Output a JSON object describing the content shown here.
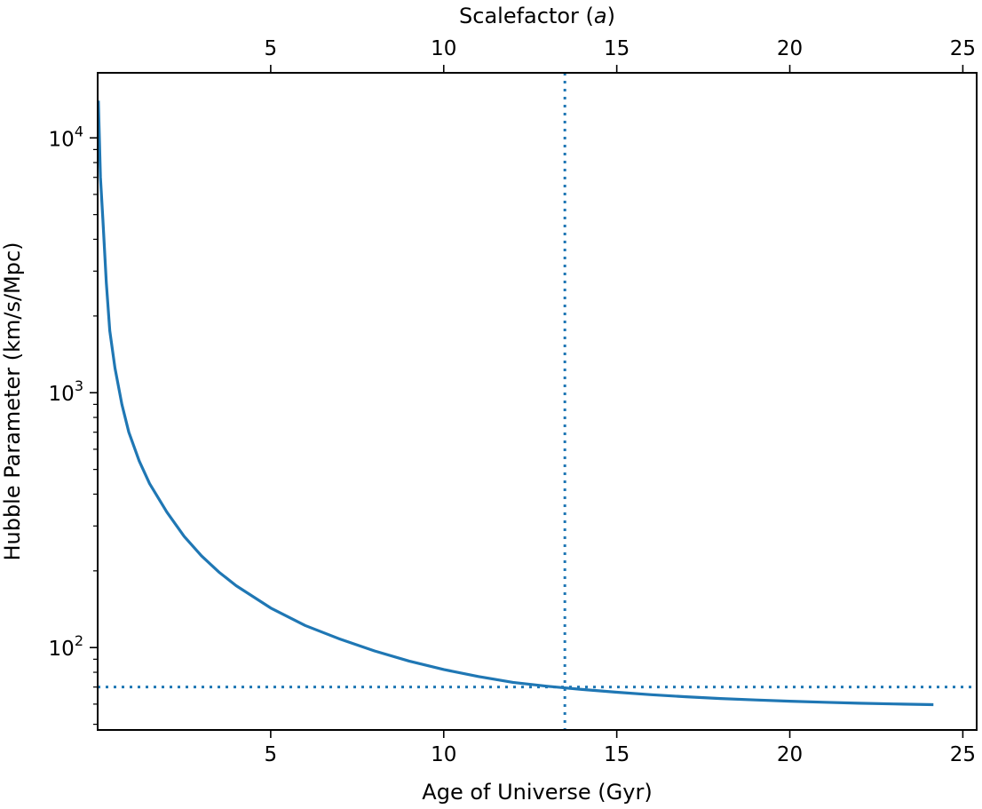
{
  "chart_data": {
    "type": "line",
    "xlabel": "Age of Universe (Gyr)",
    "ylabel": "Hubble Parameter (km/s/Mpc)",
    "top_xlabel_prefix": "Scalefactor (",
    "top_xlabel_var": "a",
    "top_xlabel_suffix": ")",
    "xlim": [
      0.0,
      25.4
    ],
    "ylim": [
      47.5,
      18000
    ],
    "yscale": "log",
    "grid": false,
    "x_ticks": [
      5,
      10,
      15,
      20,
      25
    ],
    "x_tick_labels": [
      "5",
      "10",
      "15",
      "20",
      "25"
    ],
    "top_x_ticks": [
      5,
      10,
      15,
      20,
      25
    ],
    "top_x_tick_labels": [
      "5",
      "10",
      "15",
      "20",
      "25"
    ],
    "y_major_ticks": [
      {
        "value": 100,
        "base": "10",
        "exp": "2"
      },
      {
        "value": 1000,
        "base": "10",
        "exp": "3"
      },
      {
        "value": 10000,
        "base": "10",
        "exp": "4"
      }
    ],
    "y_minor_ticks": [
      50,
      60,
      70,
      80,
      90,
      200,
      300,
      400,
      500,
      600,
      700,
      800,
      900,
      2000,
      3000,
      4000,
      5000,
      6000,
      7000,
      8000,
      9000
    ],
    "line_color": "#1f77b4",
    "series": [
      {
        "x": [
          0.02,
          0.08,
          0.15,
          0.25,
          0.35,
          0.5,
          0.7,
          0.9,
          1.2,
          1.5,
          2.0,
          2.5,
          3.0,
          3.5,
          4.0,
          5.0,
          6.0,
          7.0,
          8.0,
          9.0,
          10.0,
          11.0,
          12.0,
          13.0,
          14.0,
          15.0,
          16.0,
          17.0,
          18.0,
          19.0,
          20.0,
          21.0,
          22.0,
          23.0,
          24.15
        ],
        "y": [
          14000,
          7000,
          4800,
          2700,
          1750,
          1250,
          900,
          700,
          540,
          440,
          340,
          273,
          229,
          198,
          175,
          143,
          122,
          108,
          97,
          88.5,
          82,
          77,
          73,
          70.5,
          68.5,
          66.8,
          65.3,
          64.1,
          63.1,
          62.3,
          61.6,
          61.0,
          60.5,
          60.1,
          59.7
        ]
      }
    ],
    "reference_lines": [
      {
        "orientation": "vertical",
        "x": 13.5,
        "style": "dotted",
        "color": "#1f77b4"
      },
      {
        "orientation": "horizontal",
        "y": 70,
        "style": "dotted",
        "color": "#1f77b4"
      }
    ]
  }
}
